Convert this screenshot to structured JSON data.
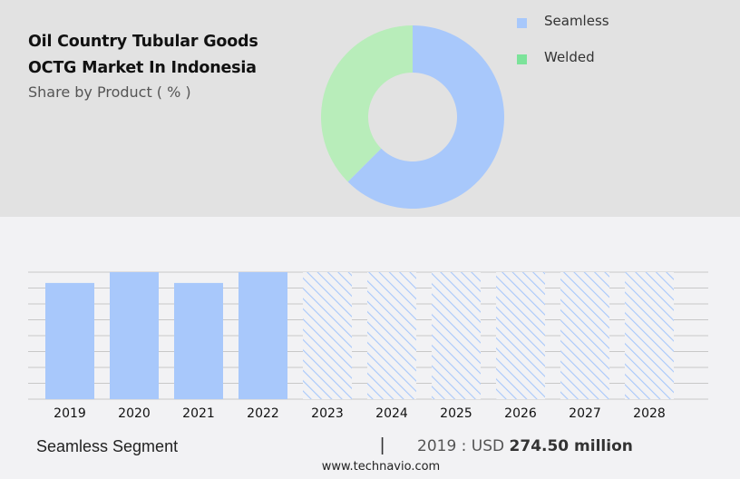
{
  "header": {
    "title_line1": "Oil Country Tubular Goods",
    "title_line2": "OCTG Market In Indonesia",
    "subtitle": "Share by Product ( % )"
  },
  "legend": [
    {
      "label": "Seamless",
      "color": "#a8c8fb"
    },
    {
      "label": "Welded",
      "color": "#7ce39a"
    }
  ],
  "footer": {
    "segment_label": "Seamless Segment",
    "separator": "|",
    "value_prefix": "2019 : USD ",
    "value_bold": "274.50 million",
    "url": "www.technavio.com"
  },
  "colors": {
    "seamless": "#a8c8fb",
    "welded_donut": "#b8edba",
    "welded_legend": "#7ce39a",
    "top_panel_bg": "#e2e2e2",
    "bottom_bg": "#f2f2f4",
    "gridline": "#c8c8c8"
  },
  "chart_data": [
    {
      "type": "pie",
      "title": "Share by Product ( % )",
      "donut": true,
      "categories": [
        "Seamless",
        "Welded"
      ],
      "values": [
        62.5,
        37.5
      ],
      "legend_position": "right"
    },
    {
      "type": "bar",
      "title": "Seamless Segment",
      "categories": [
        "2019",
        "2020",
        "2021",
        "2022",
        "2023",
        "2024",
        "2025",
        "2026",
        "2027",
        "2028"
      ],
      "values": [
        274.5,
        300,
        274.5,
        300,
        300,
        300,
        300,
        300,
        300,
        300
      ],
      "forecast_from": "2023",
      "forecast_style": "hatched",
      "ylabel": "",
      "xlabel": "",
      "y_axis_labels_shown": false,
      "grid": true,
      "gridline_count": 9,
      "annotation": "2019 : USD 274.50 million"
    }
  ]
}
